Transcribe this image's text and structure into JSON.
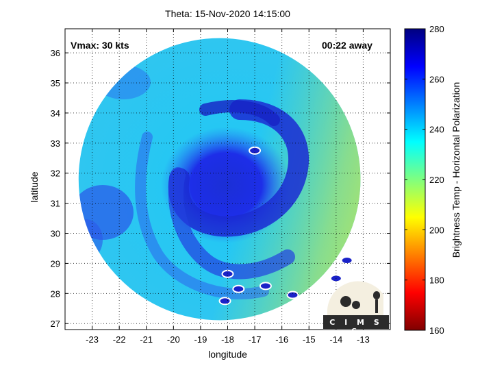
{
  "chart_data": {
    "type": "heatmap",
    "title": "Theta: 15-Nov-2020 14:15:00",
    "xlabel": "longitude",
    "ylabel": "latitude",
    "xlim": [
      -24,
      -12
    ],
    "ylim": [
      26.8,
      36.8
    ],
    "xticks": [
      -23,
      -22,
      -21,
      -20,
      -19,
      -18,
      -17,
      -16,
      -15,
      -14,
      -13
    ],
    "yticks": [
      27,
      28,
      29,
      30,
      31,
      32,
      33,
      34,
      35,
      36
    ],
    "grid": true,
    "annotations": {
      "vmax": "Vmax: 30 kts",
      "time_away": "00:22 away"
    },
    "storm_center": {
      "lon": -18.5,
      "lat": 31.9
    },
    "swath_center": {
      "lon": -18.3,
      "lat": 31.8
    },
    "swath_radius_deg": 5.2,
    "colorbar": {
      "label": "Brightness Temp - Horizontal Polarization",
      "range": [
        160,
        280
      ],
      "ticks": [
        160,
        180,
        200,
        220,
        240,
        260,
        280
      ],
      "colormap": "jet"
    },
    "islands": [
      {
        "lon": -17.0,
        "lat": 32.75
      },
      {
        "lon": -18.0,
        "lat": 28.65
      },
      {
        "lon": -17.6,
        "lat": 28.15
      },
      {
        "lon": -16.6,
        "lat": 28.25
      },
      {
        "lon": -15.6,
        "lat": 27.95
      },
      {
        "lon": -14.0,
        "lat": 28.5
      },
      {
        "lon": -13.6,
        "lat": 29.1
      },
      {
        "lon": -18.1,
        "lat": 27.75
      }
    ]
  },
  "logo": {
    "text": "CIMSS",
    "display": "C I M S S"
  }
}
